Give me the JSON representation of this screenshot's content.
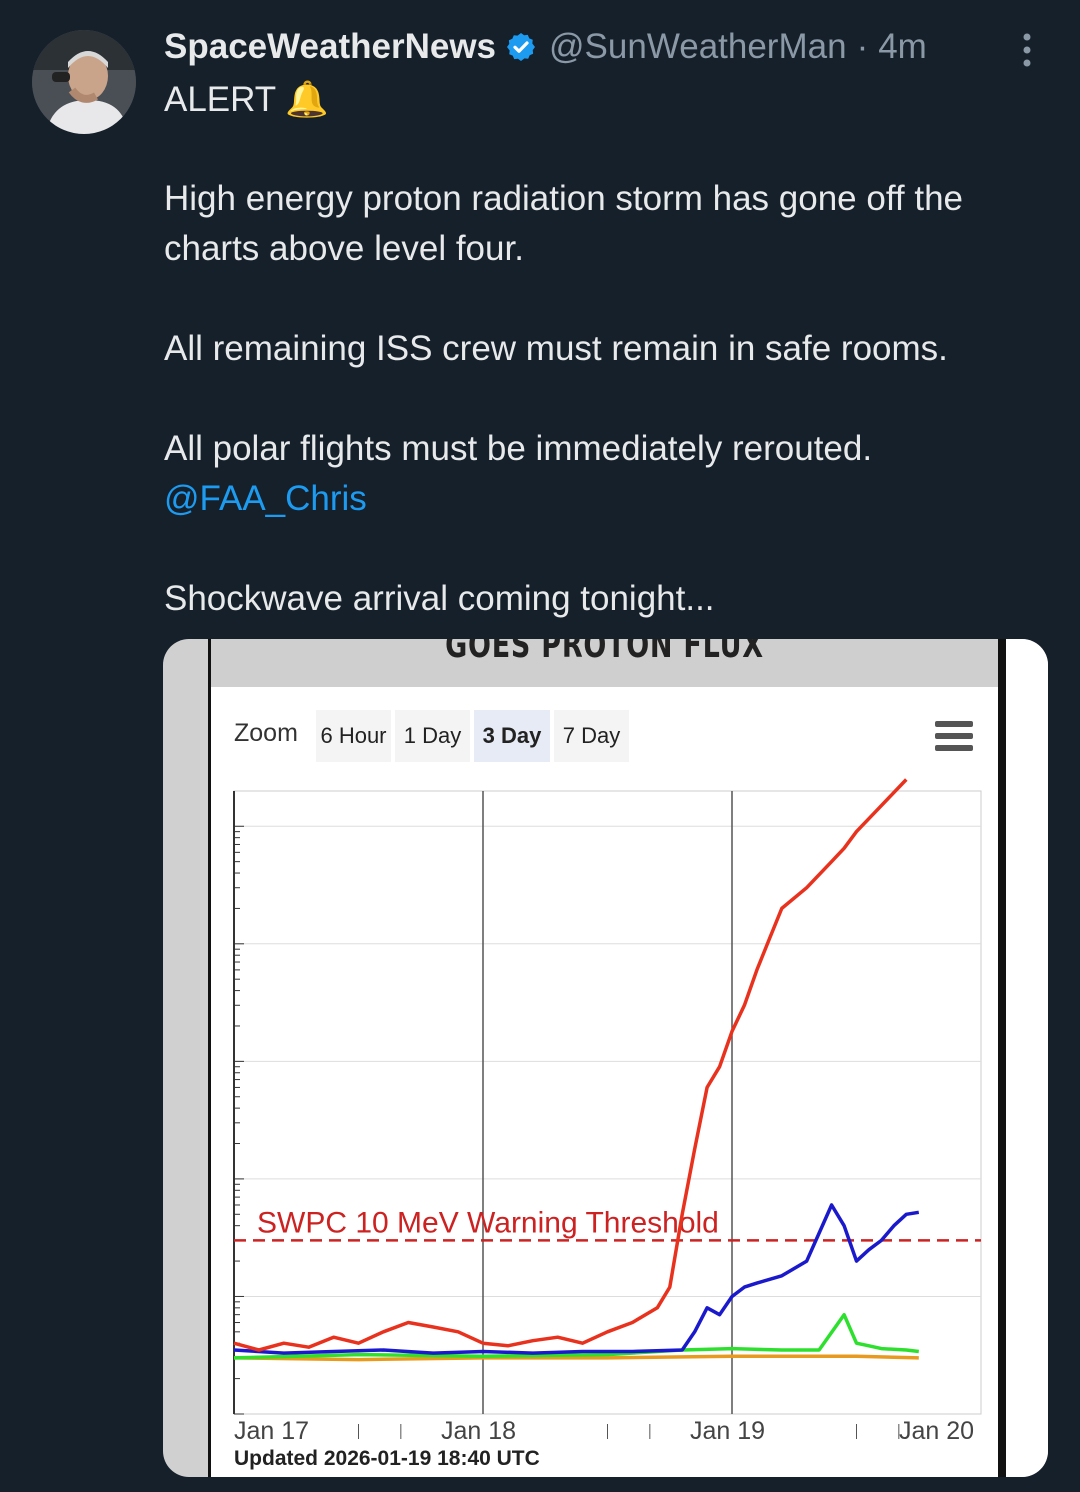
{
  "tweet": {
    "display_name": "SpaceWeatherNews",
    "handle": "@SunWeatherMan",
    "separator": "·",
    "time": "4m",
    "line1": "ALERT 🔔",
    "line2": "High energy proton radiation storm has gone off the",
    "line3": "charts above level four.",
    "line4": "All remaining ISS crew must remain in safe rooms.",
    "line5": "All polar flights must be immediately rerouted.",
    "mention": "@FAA_Chris",
    "line6": "Shockwave arrival coming tonight..."
  },
  "chart_card": {
    "title": "GOES PROTON FLUX",
    "zoom_label": "Zoom",
    "zoom_options": [
      "6 Hour",
      "1 Day",
      "3 Day",
      "7 Day"
    ],
    "zoom_selected": "3 Day",
    "updated": "Updated 2026-01-19 18:40 UTC"
  },
  "chart_data": {
    "type": "line",
    "x_ticks": [
      "Jan 17",
      "Jan 18",
      "Jan 19",
      "Jan 20"
    ],
    "xlim": [
      0,
      3
    ],
    "y_scale": "log",
    "grid": true,
    "annotation": "SWPC 10 MeV Warning Threshold",
    "threshold_level": 0.3,
    "colors": {
      "red": "#e8321e",
      "blue": "#1a1acc",
      "green": "#2ee02e",
      "orange": "#e89a1e",
      "threshold": "#cc2222"
    },
    "series": [
      {
        "color": "#e8321e",
        "x": [
          0,
          0.1,
          0.2,
          0.3,
          0.4,
          0.5,
          0.6,
          0.7,
          0.8,
          0.9,
          1.0,
          1.1,
          1.2,
          1.3,
          1.4,
          1.5,
          1.6,
          1.7,
          1.75,
          1.8,
          1.85,
          1.9,
          1.95,
          2.0,
          2.05,
          2.1,
          2.15,
          2.2,
          2.3,
          2.4,
          2.45,
          2.5,
          2.6,
          2.7
        ],
        "y": [
          0.04,
          0.035,
          0.04,
          0.037,
          0.045,
          0.04,
          0.05,
          0.06,
          0.055,
          0.05,
          0.04,
          0.038,
          0.042,
          0.045,
          0.04,
          0.05,
          0.06,
          0.08,
          0.12,
          0.5,
          1.8,
          6,
          9,
          18,
          30,
          60,
          110,
          200,
          300,
          500,
          650,
          900,
          1500,
          2500
        ]
      },
      {
        "color": "#1a1acc",
        "x": [
          0,
          0.2,
          0.4,
          0.6,
          0.8,
          1.0,
          1.2,
          1.4,
          1.6,
          1.8,
          1.85,
          1.9,
          1.95,
          2.0,
          2.05,
          2.1,
          2.2,
          2.3,
          2.4,
          2.45,
          2.5,
          2.55,
          2.6,
          2.65,
          2.7,
          2.75
        ],
        "y": [
          0.035,
          0.033,
          0.034,
          0.035,
          0.033,
          0.034,
          0.033,
          0.034,
          0.034,
          0.035,
          0.05,
          0.08,
          0.07,
          0.1,
          0.12,
          0.13,
          0.15,
          0.2,
          0.6,
          0.4,
          0.2,
          0.25,
          0.3,
          0.4,
          0.5,
          0.52
        ]
      },
      {
        "color": "#2ee02e",
        "x": [
          0,
          0.5,
          1.0,
          1.5,
          1.8,
          2.0,
          2.2,
          2.35,
          2.45,
          2.5,
          2.55,
          2.6,
          2.7,
          2.75
        ],
        "y": [
          0.03,
          0.032,
          0.031,
          0.032,
          0.035,
          0.036,
          0.035,
          0.035,
          0.07,
          0.04,
          0.038,
          0.036,
          0.035,
          0.034
        ]
      },
      {
        "color": "#e89a1e",
        "x": [
          0,
          0.5,
          1.0,
          1.5,
          2.0,
          2.5,
          2.75
        ],
        "y": [
          0.03,
          0.029,
          0.03,
          0.03,
          0.031,
          0.031,
          0.03
        ]
      }
    ]
  }
}
